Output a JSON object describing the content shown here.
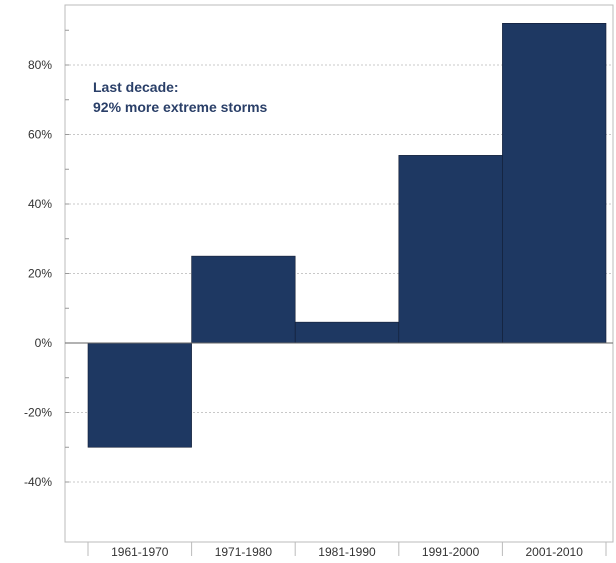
{
  "chart_data": {
    "type": "bar",
    "title": "",
    "xlabel": "",
    "ylabel": "",
    "categories": [
      "1961-1970",
      "1971-1980",
      "1981-1990",
      "1991-2000",
      "2001-2010"
    ],
    "values": [
      -30,
      25,
      6,
      54,
      92
    ],
    "value_unit": "%",
    "ylim": [
      -50,
      95
    ],
    "y_ticks": [
      80,
      60,
      40,
      20,
      0,
      -20,
      -40
    ],
    "y_tick_labels": [
      "80%",
      "60%",
      "40%",
      "20%",
      "0%",
      "-20%",
      "-40%"
    ],
    "grid": true,
    "bar_color": "#1e3862",
    "annotation": {
      "line1": "Last decade:",
      "line2": "92% more extreme storms"
    }
  }
}
